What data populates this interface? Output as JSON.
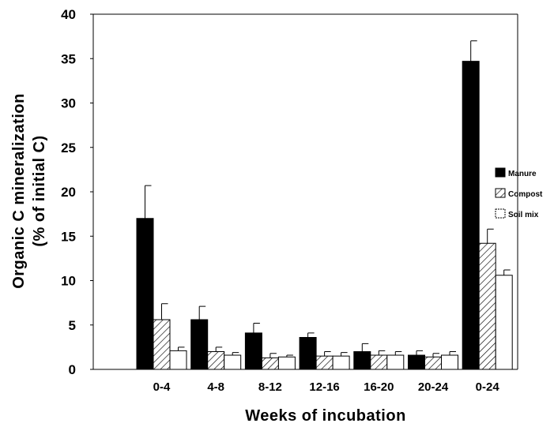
{
  "chart_data": {
    "type": "bar",
    "xlabel": "Weeks of incubation",
    "ylabel_line1": "Organic C mineralization",
    "ylabel_line2": "(% of initial C)",
    "ylim": [
      0,
      40
    ],
    "yticks": [
      0,
      5,
      10,
      15,
      20,
      25,
      30,
      35,
      40
    ],
    "categories": [
      "0-4",
      "4-8",
      "8-12",
      "12-16",
      "16-20",
      "20-24",
      "0-24"
    ],
    "legend_position": "right",
    "series": [
      {
        "name": "Manure",
        "fill": "solid",
        "color": "#000000",
        "values": [
          17.0,
          5.6,
          4.1,
          3.6,
          2.0,
          1.6,
          34.7
        ],
        "errors": [
          3.7,
          1.5,
          1.1,
          0.5,
          0.9,
          0.5,
          2.3
        ]
      },
      {
        "name": "Compost",
        "fill": "hatch",
        "color": "#000000",
        "values": [
          5.6,
          2.0,
          1.3,
          1.5,
          1.6,
          1.4,
          14.2
        ],
        "errors": [
          1.8,
          0.5,
          0.5,
          0.5,
          0.5,
          0.4,
          1.6
        ]
      },
      {
        "name": "Soil mix",
        "fill": "empty",
        "color": "#ffffff",
        "values": [
          2.1,
          1.6,
          1.4,
          1.5,
          1.6,
          1.6,
          10.6
        ],
        "errors": [
          0.4,
          0.3,
          0.2,
          0.4,
          0.4,
          0.4,
          0.6
        ]
      }
    ]
  }
}
